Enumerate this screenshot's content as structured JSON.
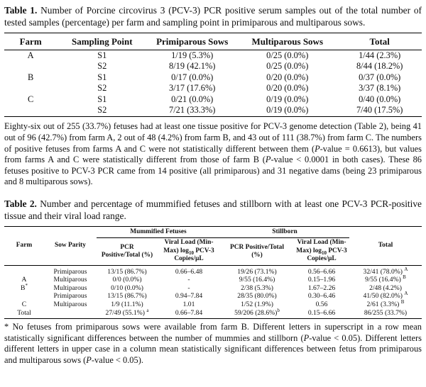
{
  "table1": {
    "label": "Table 1.",
    "caption": " Number of Porcine circovirus 3 (PCV-3) PCR positive serum samples out of the total number of tested samples (percentage) per farm and sampling point in primiparous and multiparous sows.",
    "headers": [
      "Farm",
      "Sampling Point",
      "Primiparous Sows",
      "Multiparous Sows",
      "Total"
    ],
    "rows": [
      [
        "A",
        "S1",
        "1/19 (5.3%)",
        "0/25 (0.0%)",
        "1/44 (2.3%)"
      ],
      [
        "",
        "S2",
        "8/19 (42.1%)",
        "0/25 (0.0%)",
        "8/44 (18.2%)"
      ],
      [
        "B",
        "S1",
        "0/17 (0.0%)",
        "0/20 (0.0%)",
        "0/37 (0.0%)"
      ],
      [
        "",
        "S2",
        "3/17 (17.6%)",
        "0/20 (0.0%)",
        "3/37 (8.1%)"
      ],
      [
        "C",
        "S1",
        "0/21 (0.0%)",
        "0/19 (0.0%)",
        "0/40 (0.0%)"
      ],
      [
        "",
        "S2",
        "7/21 (33.3%)",
        "0/19 (0.0%)",
        "7/40 (17.5%)"
      ]
    ]
  },
  "paragraph": {
    "part1": "Eighty-six out of 255 (33.7%) fetuses had at least one tissue positive for PCV-3 genome detection (Table 2), being 41 out of 96 (42.7%) from farm A, 2 out of 48 (4.2%) from farm B, and 43 out of 111 (38.7%) from farm C. The numbers of positive fetuses from farms A and C were not statistically different between them (",
    "pvalue_label": "P",
    "part2": "-value = 0.6613), but values from farms A and C were statistically different from those of farm B (",
    "part3": "-value < 0.0001 in both cases). These 86 fetuses positive to PCV-3 PCR came from 14 positive (all primiparous) and 31 negative dams (being 23 primiparous and 8 multiparous sows)."
  },
  "table2": {
    "label": "Table 2.",
    "caption": " Number and percentage of mummified fetuses and stillborn with at least one PCV-3 PCR-positive tissue and their viral load range.",
    "group_mummified": "Mummified Fetuses",
    "group_stillborn": "Stillborn",
    "h_farm": "Farm",
    "h_parity": "Sow Parity",
    "h_mum_pcr": "PCR Positive/Total (%)",
    "h_mum_vl_1": "Viral Load (Min-Max) log",
    "h_mum_vl_sub": "10",
    "h_mum_vl_2": "PCV-3 Copies/µL",
    "h_still_pcr": "PCR Positive/Total (%)",
    "h_still_vl_1": "Viral Load (Min-Max) log",
    "h_still_vl_sub": "10",
    "h_still_vl_2": "PCV-3 Copies/µL",
    "h_total": "Total",
    "rows": [
      {
        "farm": "",
        "parity": "Primiparous",
        "mum_pcr": "13/15 (86.7%)",
        "mum_sup": "",
        "mum_vl": "0.66–6.48",
        "still_pcr": "19/26 (73.1%)",
        "still_sup": "",
        "still_vl": "0.56–6.66",
        "total": "32/41 (78.0%)",
        "total_sup": "A"
      },
      {
        "farm": "A",
        "parity": "Multiparous",
        "mum_pcr": "0/0 (0.0%)",
        "mum_sup": "",
        "mum_vl": "-",
        "still_pcr": "9/55 (16.4%)",
        "still_sup": "",
        "still_vl": "0.15–1.96",
        "total": "9/55 (16.4%)",
        "total_sup": "B"
      },
      {
        "farm": "B",
        "farm_sup": "*",
        "parity": "Multiparous",
        "mum_pcr": "0/10 (0.0%)",
        "mum_sup": "",
        "mum_vl": "-",
        "still_pcr": "2/38 (5.3%)",
        "still_sup": "",
        "still_vl": "1.67–2.26",
        "total": "2/48 (4.2%)",
        "total_sup": ""
      },
      {
        "farm": "",
        "parity": "Primiparous",
        "mum_pcr": "13/15 (86.7%)",
        "mum_sup": "",
        "mum_vl": "0.94–7.84",
        "still_pcr": "28/35 (80.0%)",
        "still_sup": "",
        "still_vl": "0.30–6.46",
        "total": "41/50 (82.0%)",
        "total_sup": "A"
      },
      {
        "farm": "C",
        "parity": "Multiparous",
        "mum_pcr": "1/9 (11.1%)",
        "mum_sup": "",
        "mum_vl": "1.01",
        "still_pcr": "1/52 (1.9%)",
        "still_sup": "",
        "still_vl": "0.56",
        "total": "2/61 (3.3%)",
        "total_sup": "B"
      },
      {
        "farm": "Total",
        "parity": "",
        "mum_pcr": "27/49 (55.1%)",
        "mum_sup": "a",
        "mum_vl": "0.66–7.84",
        "still_pcr": "59/206 (28.6%)",
        "still_sup": "b",
        "still_vl": "0.15–6.66",
        "total": "86/255 (33.7%)",
        "total_sup": ""
      }
    ]
  },
  "footnote": {
    "part1": "* No fetuses from primiparous sows were available from farm B. Different letters in superscript in a row mean statistically significant differences between the number of mummies and stillborn (",
    "pvalue_label": "P",
    "part2": "-value < 0.05). Different letters different letters in upper case in a column mean statistically significant differences between fetus from primiparous and multiparous sows (",
    "part3": "-value < 0.05)."
  }
}
